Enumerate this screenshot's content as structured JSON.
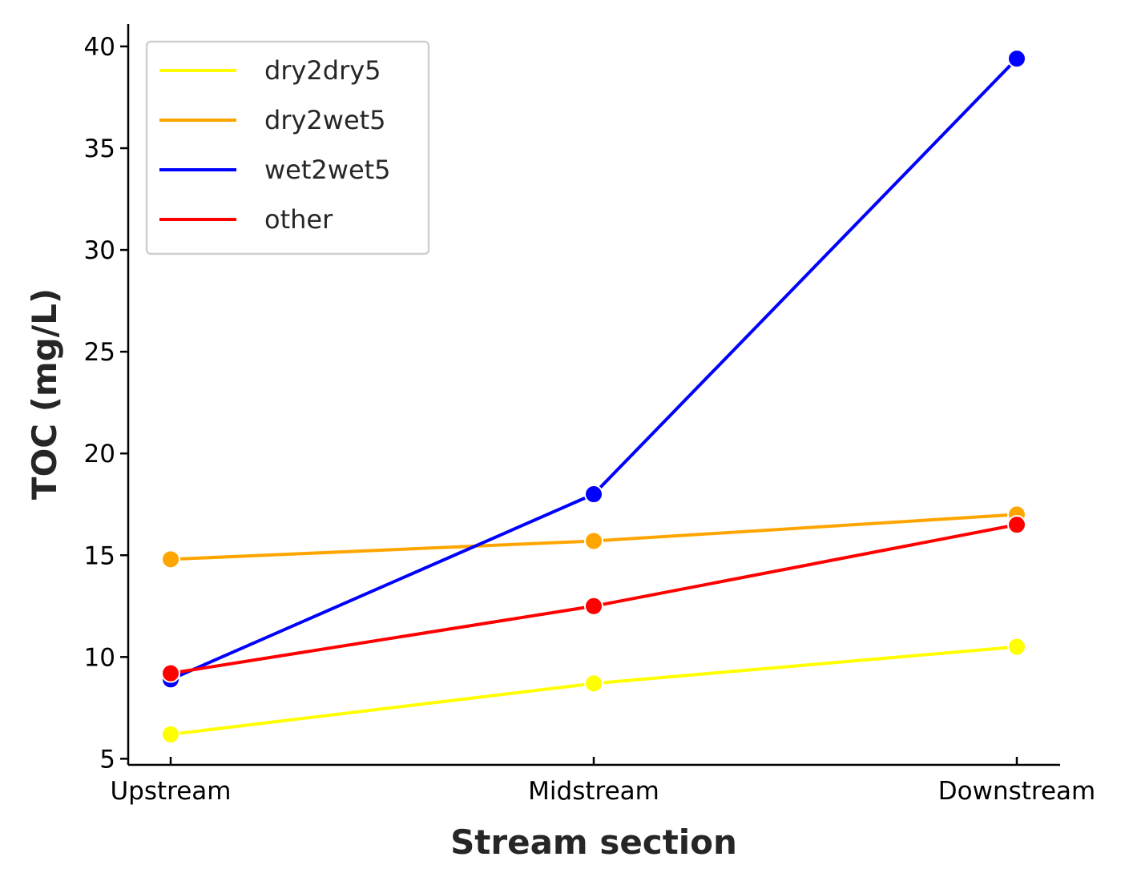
{
  "chart_data": {
    "type": "line",
    "title": "",
    "xlabel": "Stream section",
    "ylabel": "TOC (mg/L)",
    "categories": [
      "Upstream",
      "Midstream",
      "Downstream"
    ],
    "ylim": [
      4.7,
      41.1
    ],
    "yticks": [
      5,
      10,
      15,
      20,
      25,
      30,
      35,
      40
    ],
    "grid": false,
    "legend_position": "top-left",
    "series": [
      {
        "name": "dry2dry5",
        "color": "#ffff00",
        "values": [
          6.2,
          8.7,
          10.5
        ]
      },
      {
        "name": "dry2wet5",
        "color": "#ffa500",
        "values": [
          14.8,
          15.7,
          17.0
        ]
      },
      {
        "name": "wet2wet5",
        "color": "#0000ff",
        "values": [
          8.9,
          18.0,
          39.4
        ]
      },
      {
        "name": "other",
        "color": "#ff0000",
        "values": [
          9.2,
          12.5,
          16.5
        ]
      }
    ]
  }
}
